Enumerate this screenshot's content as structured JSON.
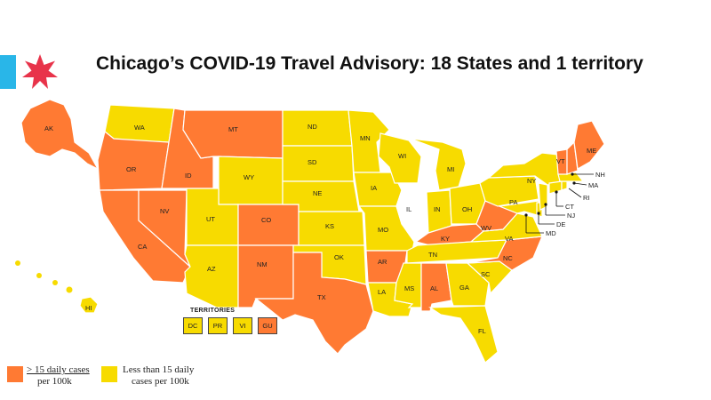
{
  "title": "Chicago’s COVID-19 Travel Advisory: 18 States and 1 territory",
  "colors": {
    "high": "#ff7a33",
    "low": "#f7db00",
    "none": "#ffffff",
    "accent_blue": "#29b6e8",
    "star_red": "#e8334a"
  },
  "states": {
    "AK": "AK",
    "WA": "WA",
    "OR": "OR",
    "CA": "CA",
    "ID": "ID",
    "NV": "NV",
    "MT": "MT",
    "WY": "WY",
    "UT": "UT",
    "AZ": "AZ",
    "CO": "CO",
    "NM": "NM",
    "ND": "ND",
    "SD": "SD",
    "NE": "NE",
    "KS": "KS",
    "OK": "OK",
    "TX": "TX",
    "MN": "MN",
    "IA": "IA",
    "MO": "MO",
    "AR": "AR",
    "LA": "LA",
    "WI": "WI",
    "IL": "IL",
    "MI": "MI",
    "IN": "IN",
    "OH": "OH",
    "KY": "KY",
    "TN": "TN",
    "MS": "MS",
    "AL": "AL",
    "GA": "GA",
    "FL": "FL",
    "SC": "SC",
    "NC": "NC",
    "VA": "VA",
    "WV": "WV",
    "PA": "PA",
    "NY": "NY",
    "VT": "VT",
    "ME": "ME",
    "NH": "NH",
    "MA": "MA",
    "RI": "RI",
    "CT": "CT",
    "NJ": "NJ",
    "DE": "DE",
    "MD": "MD",
    "HI": "HI"
  },
  "territories": {
    "title": "TERRITORIES",
    "items": [
      "DC",
      "PR",
      "VI",
      "GU"
    ]
  },
  "legend": {
    "high_line1": "> 15 daily cases",
    "high_line2": "per 100k",
    "low_line1": "Less than 15 daily",
    "low_line2": "cases per 100k"
  }
}
